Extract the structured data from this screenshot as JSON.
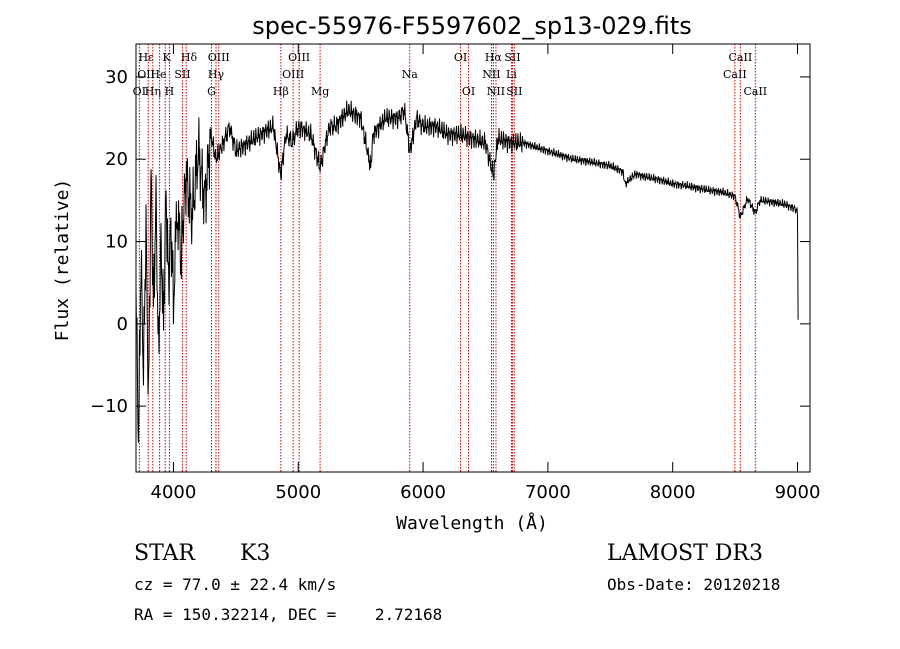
{
  "chart_data": {
    "type": "line",
    "title": "spec-55976-F5597602_sp13-029.fits",
    "xlabel": "Wavelength (Å)",
    "ylabel": "Flux (relative)",
    "xlim": [
      3700,
      9100
    ],
    "ylim": [
      -18,
      34
    ],
    "xticks": [
      4000,
      5000,
      6000,
      7000,
      8000,
      9000
    ],
    "yticks": [
      -10,
      0,
      10,
      20,
      30
    ],
    "grid": false,
    "series": [
      {
        "name": "flux",
        "color": "#000000",
        "x": [
          3700,
          3720,
          3740,
          3760,
          3780,
          3800,
          3820,
          3840,
          3860,
          3880,
          3900,
          3920,
          3940,
          3960,
          3980,
          4000,
          4030,
          4060,
          4100,
          4150,
          4200,
          4250,
          4300,
          4340,
          4400,
          4450,
          4500,
          4600,
          4700,
          4800,
          4860,
          4900,
          4950,
          5000,
          5100,
          5175,
          5250,
          5300,
          5400,
          5500,
          5580,
          5600,
          5700,
          5800,
          5850,
          5893,
          5950,
          6000,
          6100,
          6200,
          6300,
          6400,
          6500,
          6563,
          6600,
          6700,
          6800,
          6900,
          7000,
          7100,
          7200,
          7300,
          7400,
          7500,
          7600,
          7620,
          7700,
          7800,
          7900,
          8000,
          8100,
          8200,
          8300,
          8400,
          8500,
          8542,
          8600,
          8662,
          8700,
          8800,
          8900,
          8980,
          9000,
          9005
        ],
        "y": [
          4,
          -14,
          8,
          -6,
          12,
          -10,
          18,
          2,
          15,
          -4,
          10,
          0,
          16,
          5,
          12,
          3,
          14,
          8,
          18,
          13,
          21,
          15,
          23,
          20,
          22,
          24,
          21,
          22,
          23,
          24,
          18,
          23,
          22,
          24,
          23,
          19,
          24,
          24,
          26,
          25,
          19,
          23,
          25,
          25,
          26,
          21,
          25,
          24,
          24,
          23,
          23,
          22.5,
          22,
          18,
          22.5,
          22,
          22,
          21.5,
          21,
          20.5,
          20,
          19.8,
          19.5,
          19.2,
          18.5,
          17,
          18.2,
          17.8,
          17.5,
          17,
          16.8,
          16.5,
          16.2,
          16,
          15.5,
          13,
          15.2,
          13.5,
          15,
          14.8,
          14.5,
          14,
          13.5,
          0.5
        ]
      }
    ],
    "lines_top": [
      {
        "label": "Hδ",
        "x": 4102
      },
      {
        "label": "K",
        "x": 3934
      },
      {
        "label": "Hδ",
        "x": 4102
      },
      {
        "label": "OIII",
        "x": 4363
      },
      {
        "label": "OIII",
        "x": 5007
      },
      {
        "label": "OI",
        "x": 6300
      },
      {
        "label": "Hα",
        "x": 6563
      },
      {
        "label": "SII",
        "x": 6716
      },
      {
        "label": "CaII",
        "x": 8542
      }
    ],
    "line_labels": [
      {
        "label": "Hε",
        "x": 3781,
        "row": 1
      },
      {
        "label": "K",
        "x": 3945,
        "row": 1
      },
      {
        "label": "Hδ",
        "x": 4125,
        "row": 1
      },
      {
        "label": "OIII",
        "x": 4363,
        "row": 1
      },
      {
        "label": "OIII",
        "x": 5007,
        "row": 1
      },
      {
        "label": "OI",
        "x": 6300,
        "row": 1
      },
      {
        "label": "Hα",
        "x": 6563,
        "row": 1
      },
      {
        "label": "SII",
        "x": 6716,
        "row": 1
      },
      {
        "label": "CaII",
        "x": 8542,
        "row": 1
      },
      {
        "label": "OII",
        "x": 3781,
        "row": 2
      },
      {
        "label": "He",
        "x": 3880,
        "row": 2
      },
      {
        "label": "SII",
        "x": 4072,
        "row": 2
      },
      {
        "label": "Hγ",
        "x": 4341,
        "row": 2
      },
      {
        "label": "OIII",
        "x": 4959,
        "row": 2
      },
      {
        "label": "Na",
        "x": 5893,
        "row": 2
      },
      {
        "label": "NII",
        "x": 6548,
        "row": 2
      },
      {
        "label": "Li",
        "x": 6708,
        "row": 2
      },
      {
        "label": "CaII",
        "x": 8498,
        "row": 2
      },
      {
        "label": "OI",
        "x": 3727,
        "row": 3
      },
      {
        "label": "Hη",
        "x": 3835,
        "row": 3
      },
      {
        "label": "H",
        "x": 3968,
        "row": 3
      },
      {
        "label": "G",
        "x": 4305,
        "row": 3
      },
      {
        "label": "Hβ",
        "x": 4861,
        "row": 3
      },
      {
        "label": "Mg",
        "x": 5175,
        "row": 3
      },
      {
        "label": "OI",
        "x": 6364,
        "row": 3
      },
      {
        "label": "NII",
        "x": 6584,
        "row": 3
      },
      {
        "label": "SII",
        "x": 6731,
        "row": 3
      },
      {
        "label": "CaII",
        "x": 8662,
        "row": 3
      }
    ],
    "marker_lines": [
      3727,
      3798,
      3835,
      3889,
      3934,
      3968,
      4072,
      4102,
      4305,
      4341,
      4363,
      4861,
      4959,
      5007,
      5175,
      5893,
      6300,
      6364,
      6548,
      6563,
      6584,
      6708,
      6716,
      6731,
      8498,
      8542,
      8662
    ],
    "marker_color": "#cc0000"
  },
  "info": {
    "object_class": "STAR",
    "subclass": "K3",
    "survey": "LAMOST DR3",
    "cz": "cz = 77.0 ± 22.4 km/s",
    "obs_date": "Obs-Date: 20120218",
    "coords": "RA = 150.32214, DEC =    2.72168"
  }
}
